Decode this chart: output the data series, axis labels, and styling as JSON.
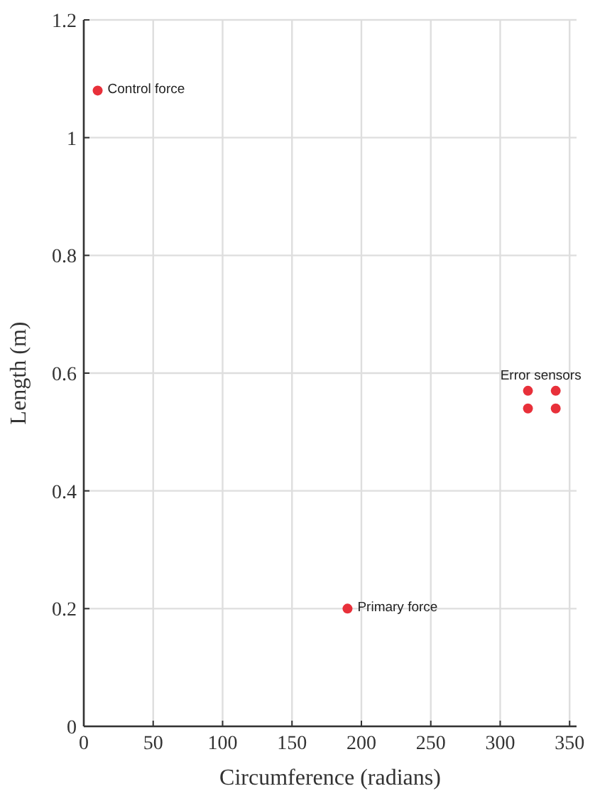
{
  "chart_data": {
    "type": "scatter",
    "xlabel": "Circumference (radians)",
    "ylabel": "Length (m)",
    "series": [
      {
        "color": "#e8303a",
        "x": [
          10,
          190,
          320,
          340,
          320,
          340
        ],
        "values": [
          1.08,
          0.2,
          0.57,
          0.57,
          0.54,
          0.54
        ]
      }
    ],
    "xlim": [
      0,
      355
    ],
    "xticks": [
      0,
      50,
      100,
      150,
      200,
      250,
      300,
      350
    ],
    "ylim": [
      0,
      1.2
    ],
    "yticks": [
      0,
      0.2,
      0.4,
      0.6,
      0.8,
      1,
      1.2
    ],
    "grid": true,
    "marker": "circle",
    "annotations": [
      {
        "text": "Control force",
        "x": 10,
        "y": 1.08
      },
      {
        "text": "Primary force",
        "x": 190,
        "y": 0.2
      },
      {
        "text": "Error sensors",
        "x": 340,
        "y": 0.57
      }
    ]
  }
}
